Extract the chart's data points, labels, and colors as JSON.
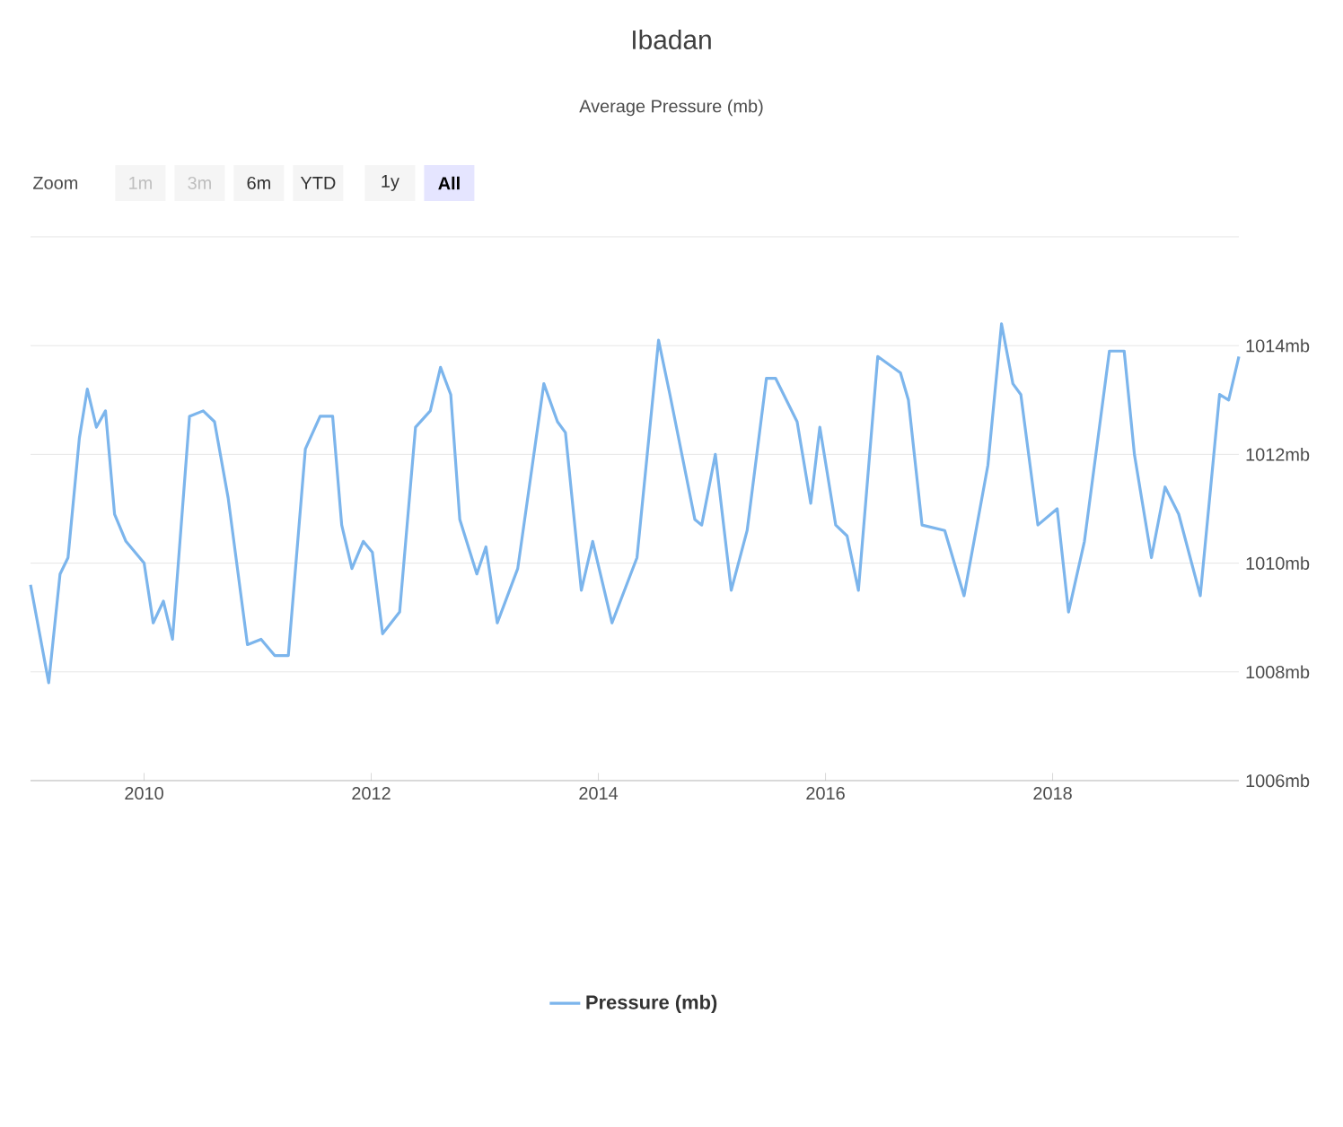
{
  "chart_data": {
    "type": "line",
    "title": "Ibadan",
    "subtitle": "Average Pressure (mb)",
    "annotations": [
      "Zoom",
      "1m",
      "3m",
      "6m",
      "YTD",
      "1y",
      "All"
    ],
    "x": [
      2009.0,
      2009.16,
      2009.26,
      2009.33,
      2009.43,
      2009.5,
      2009.58,
      2009.66,
      2009.74,
      2009.84,
      2010.0,
      2010.08,
      2010.17,
      2010.25,
      2010.4,
      2010.52,
      2010.62,
      2010.74,
      2010.91,
      2011.03,
      2011.15,
      2011.27,
      2011.42,
      2011.55,
      2011.66,
      2011.74,
      2011.83,
      2011.93,
      2012.01,
      2012.1,
      2012.25,
      2012.39,
      2012.52,
      2012.61,
      2012.7,
      2012.78,
      2012.93,
      2013.01,
      2013.11,
      2013.29,
      2013.52,
      2013.64,
      2013.71,
      2013.85,
      2013.95,
      2014.12,
      2014.34,
      2014.53,
      2014.63,
      2014.85,
      2014.91,
      2015.03,
      2015.17,
      2015.31,
      2015.48,
      2015.56,
      2015.75,
      2015.87,
      2015.95,
      2016.09,
      2016.19,
      2016.29,
      2016.46,
      2016.66,
      2016.73,
      2016.85,
      2017.05,
      2017.22,
      2017.43,
      2017.55,
      2017.65,
      2017.72,
      2017.87,
      2018.04,
      2018.14,
      2018.28,
      2018.5,
      2018.63,
      2018.72,
      2018.87,
      2018.99,
      2019.11,
      2019.3,
      2019.47,
      2019.55,
      2019.64
    ],
    "series": [
      {
        "name": "Pressure (mb)",
        "color": "#7cb5ec",
        "values": [
          1009.6,
          1007.8,
          1009.8,
          1010.1,
          1012.3,
          1013.2,
          1012.5,
          1012.8,
          1010.9,
          1010.4,
          1010.0,
          1008.9,
          1009.3,
          1008.6,
          1012.7,
          1012.8,
          1012.6,
          1011.2,
          1008.5,
          1008.6,
          1008.3,
          1008.3,
          1012.1,
          1012.7,
          1012.7,
          1010.7,
          1009.9,
          1010.4,
          1010.2,
          1008.7,
          1009.1,
          1012.5,
          1012.8,
          1013.6,
          1013.1,
          1010.8,
          1009.8,
          1010.3,
          1008.9,
          1009.9,
          1013.3,
          1012.6,
          1012.4,
          1009.5,
          1010.4,
          1008.9,
          1010.1,
          1014.1,
          1013.1,
          1010.8,
          1010.7,
          1012.0,
          1009.5,
          1010.6,
          1013.4,
          1013.4,
          1012.6,
          1011.1,
          1012.5,
          1010.7,
          1010.5,
          1009.5,
          1013.8,
          1013.5,
          1013.0,
          1010.7,
          1010.6,
          1009.4,
          1011.8,
          1014.4,
          1013.3,
          1013.1,
          1010.7,
          1011.0,
          1009.1,
          1010.4,
          1013.9,
          1013.9,
          1012.0,
          1010.1,
          1011.4,
          1010.9,
          1009.4,
          1013.1,
          1013.0,
          1013.8
        ]
      }
    ],
    "xlim": [
      2009.0,
      2019.64
    ],
    "xticks": [
      2010,
      2012,
      2014,
      2016,
      2018
    ],
    "ylim": [
      1006,
      1016
    ],
    "yticks": [
      {
        "value": 1006,
        "label": "1006mb"
      },
      {
        "value": 1008,
        "label": "1008mb"
      },
      {
        "value": 1010,
        "label": "1010mb"
      },
      {
        "value": 1012,
        "label": "1012mb"
      },
      {
        "value": 1014,
        "label": "1014mb"
      },
      {
        "value": 1016,
        "label": null
      }
    ],
    "grid": "y",
    "legend": "bottom",
    "marker": "none",
    "line_style": "solid"
  }
}
